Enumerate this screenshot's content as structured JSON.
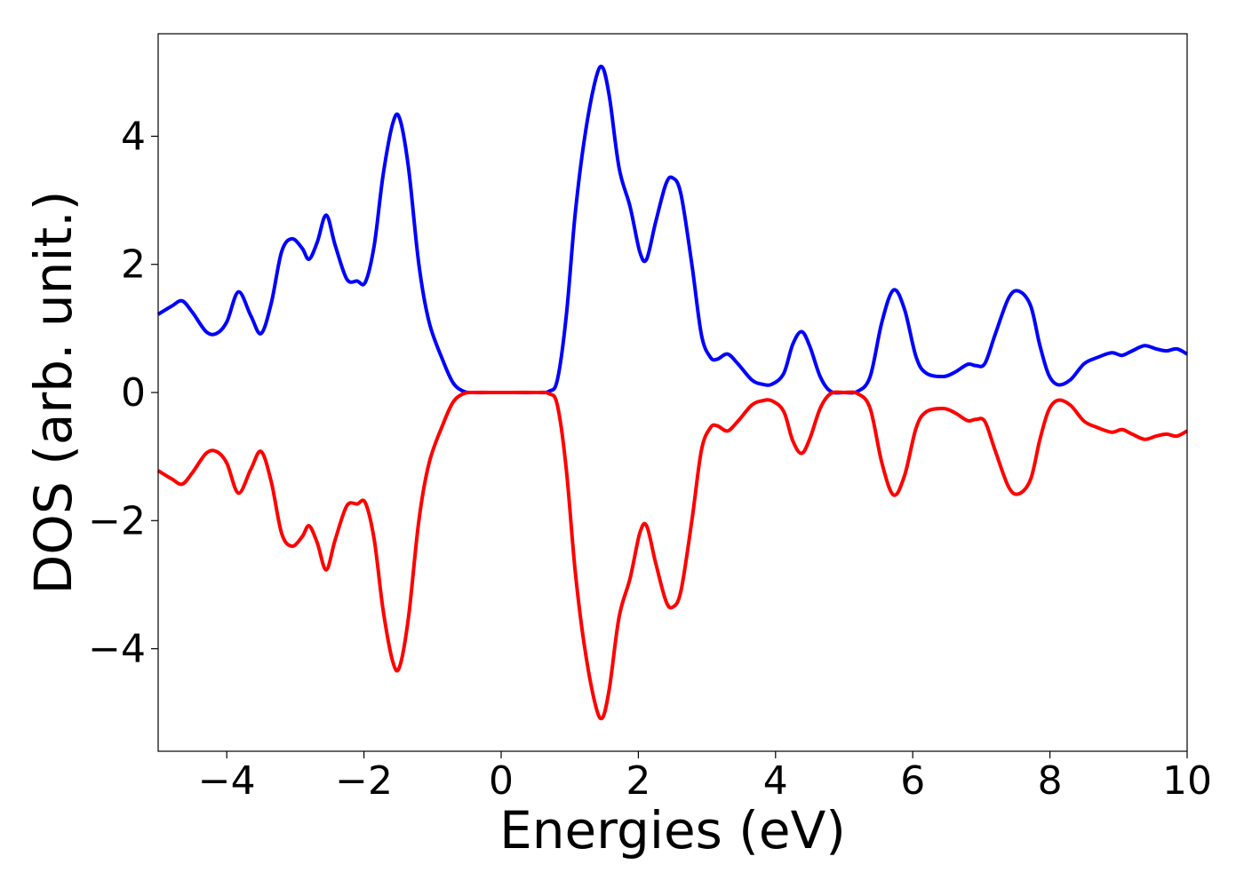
{
  "chart_data": {
    "type": "line",
    "title": "",
    "xlabel": "Energies (eV)",
    "ylabel": "DOS (arb. unit.)",
    "xlim": [
      -5,
      10
    ],
    "ylim": [
      -5.6,
      5.6
    ],
    "xticks": [
      -4,
      -2,
      0,
      2,
      4,
      6,
      8,
      10
    ],
    "xtick_labels": [
      "−4",
      "−2",
      "0",
      "2",
      "4",
      "6",
      "8",
      "10"
    ],
    "yticks": [
      4,
      2,
      0,
      -2,
      -4
    ],
    "ytick_labels": [
      "4",
      "2",
      "0",
      "−2",
      "−4"
    ],
    "grid": false,
    "legend": "none",
    "series": [
      {
        "color": "#0000ff",
        "points": [
          [
            -5.0,
            1.22
          ],
          [
            -4.8,
            1.35
          ],
          [
            -4.65,
            1.43
          ],
          [
            -4.5,
            1.25
          ],
          [
            -4.3,
            0.95
          ],
          [
            -4.15,
            0.92
          ],
          [
            -4.0,
            1.1
          ],
          [
            -3.83,
            1.57
          ],
          [
            -3.65,
            1.2
          ],
          [
            -3.5,
            0.92
          ],
          [
            -3.35,
            1.4
          ],
          [
            -3.2,
            2.2
          ],
          [
            -3.05,
            2.4
          ],
          [
            -2.9,
            2.25
          ],
          [
            -2.8,
            2.08
          ],
          [
            -2.68,
            2.35
          ],
          [
            -2.55,
            2.77
          ],
          [
            -2.42,
            2.3
          ],
          [
            -2.25,
            1.77
          ],
          [
            -2.1,
            1.74
          ],
          [
            -1.98,
            1.72
          ],
          [
            -1.85,
            2.3
          ],
          [
            -1.72,
            3.4
          ],
          [
            -1.58,
            4.2
          ],
          [
            -1.48,
            4.28
          ],
          [
            -1.35,
            3.5
          ],
          [
            -1.2,
            2.0
          ],
          [
            -1.05,
            1.1
          ],
          [
            -0.85,
            0.5
          ],
          [
            -0.7,
            0.15
          ],
          [
            -0.55,
            0.02
          ],
          [
            -0.4,
            0.0
          ],
          [
            0.0,
            0.0
          ],
          [
            0.5,
            0.0
          ],
          [
            0.7,
            0.02
          ],
          [
            0.82,
            0.2
          ],
          [
            0.95,
            1.2
          ],
          [
            1.08,
            2.8
          ],
          [
            1.22,
            4.0
          ],
          [
            1.38,
            4.9
          ],
          [
            1.48,
            5.07
          ],
          [
            1.58,
            4.6
          ],
          [
            1.72,
            3.5
          ],
          [
            1.88,
            2.9
          ],
          [
            2.02,
            2.2
          ],
          [
            2.12,
            2.08
          ],
          [
            2.25,
            2.65
          ],
          [
            2.4,
            3.25
          ],
          [
            2.5,
            3.35
          ],
          [
            2.62,
            3.1
          ],
          [
            2.78,
            2.0
          ],
          [
            2.92,
            0.9
          ],
          [
            3.05,
            0.55
          ],
          [
            3.15,
            0.52
          ],
          [
            3.3,
            0.6
          ],
          [
            3.45,
            0.45
          ],
          [
            3.65,
            0.2
          ],
          [
            3.8,
            0.13
          ],
          [
            3.95,
            0.13
          ],
          [
            4.12,
            0.3
          ],
          [
            4.25,
            0.75
          ],
          [
            4.38,
            0.95
          ],
          [
            4.5,
            0.72
          ],
          [
            4.65,
            0.25
          ],
          [
            4.8,
            0.02
          ],
          [
            5.0,
            0.0
          ],
          [
            5.2,
            0.02
          ],
          [
            5.38,
            0.25
          ],
          [
            5.55,
            1.1
          ],
          [
            5.72,
            1.6
          ],
          [
            5.88,
            1.3
          ],
          [
            6.05,
            0.55
          ],
          [
            6.2,
            0.3
          ],
          [
            6.45,
            0.25
          ],
          [
            6.62,
            0.32
          ],
          [
            6.8,
            0.44
          ],
          [
            6.92,
            0.42
          ],
          [
            7.05,
            0.45
          ],
          [
            7.2,
            0.9
          ],
          [
            7.4,
            1.48
          ],
          [
            7.55,
            1.58
          ],
          [
            7.72,
            1.35
          ],
          [
            7.85,
            0.75
          ],
          [
            7.98,
            0.28
          ],
          [
            8.12,
            0.12
          ],
          [
            8.3,
            0.2
          ],
          [
            8.5,
            0.45
          ],
          [
            8.7,
            0.55
          ],
          [
            8.9,
            0.62
          ],
          [
            9.05,
            0.58
          ],
          [
            9.2,
            0.65
          ],
          [
            9.38,
            0.73
          ],
          [
            9.55,
            0.68
          ],
          [
            9.7,
            0.65
          ],
          [
            9.85,
            0.68
          ],
          [
            10.0,
            0.6
          ]
        ]
      },
      {
        "color": "#ff0000",
        "points": [
          [
            -5.0,
            -1.22
          ],
          [
            -4.8,
            -1.35
          ],
          [
            -4.65,
            -1.43
          ],
          [
            -4.5,
            -1.25
          ],
          [
            -4.3,
            -0.95
          ],
          [
            -4.15,
            -0.92
          ],
          [
            -4.0,
            -1.1
          ],
          [
            -3.83,
            -1.57
          ],
          [
            -3.65,
            -1.2
          ],
          [
            -3.5,
            -0.92
          ],
          [
            -3.35,
            -1.4
          ],
          [
            -3.2,
            -2.2
          ],
          [
            -3.05,
            -2.4
          ],
          [
            -2.9,
            -2.25
          ],
          [
            -2.8,
            -2.08
          ],
          [
            -2.68,
            -2.35
          ],
          [
            -2.55,
            -2.77
          ],
          [
            -2.42,
            -2.3
          ],
          [
            -2.25,
            -1.77
          ],
          [
            -2.1,
            -1.74
          ],
          [
            -1.98,
            -1.72
          ],
          [
            -1.85,
            -2.3
          ],
          [
            -1.72,
            -3.4
          ],
          [
            -1.58,
            -4.2
          ],
          [
            -1.48,
            -4.28
          ],
          [
            -1.35,
            -3.5
          ],
          [
            -1.2,
            -2.0
          ],
          [
            -1.05,
            -1.1
          ],
          [
            -0.85,
            -0.5
          ],
          [
            -0.7,
            -0.15
          ],
          [
            -0.55,
            -0.02
          ],
          [
            -0.4,
            0.0
          ],
          [
            0.0,
            0.0
          ],
          [
            0.5,
            0.0
          ],
          [
            0.7,
            -0.02
          ],
          [
            0.82,
            -0.2
          ],
          [
            0.95,
            -1.2
          ],
          [
            1.08,
            -2.8
          ],
          [
            1.22,
            -4.0
          ],
          [
            1.38,
            -4.9
          ],
          [
            1.48,
            -5.07
          ],
          [
            1.58,
            -4.6
          ],
          [
            1.72,
            -3.5
          ],
          [
            1.88,
            -2.9
          ],
          [
            2.02,
            -2.2
          ],
          [
            2.12,
            -2.08
          ],
          [
            2.25,
            -2.65
          ],
          [
            2.4,
            -3.25
          ],
          [
            2.5,
            -3.35
          ],
          [
            2.62,
            -3.1
          ],
          [
            2.78,
            -2.0
          ],
          [
            2.92,
            -0.9
          ],
          [
            3.05,
            -0.55
          ],
          [
            3.15,
            -0.52
          ],
          [
            3.3,
            -0.6
          ],
          [
            3.45,
            -0.45
          ],
          [
            3.65,
            -0.2
          ],
          [
            3.8,
            -0.13
          ],
          [
            3.95,
            -0.13
          ],
          [
            4.12,
            -0.3
          ],
          [
            4.25,
            -0.75
          ],
          [
            4.38,
            -0.95
          ],
          [
            4.5,
            -0.72
          ],
          [
            4.65,
            -0.25
          ],
          [
            4.8,
            -0.02
          ],
          [
            5.0,
            0.0
          ],
          [
            5.2,
            -0.02
          ],
          [
            5.38,
            -0.25
          ],
          [
            5.55,
            -1.1
          ],
          [
            5.72,
            -1.6
          ],
          [
            5.88,
            -1.3
          ],
          [
            6.05,
            -0.55
          ],
          [
            6.2,
            -0.3
          ],
          [
            6.45,
            -0.25
          ],
          [
            6.62,
            -0.32
          ],
          [
            6.8,
            -0.44
          ],
          [
            6.92,
            -0.42
          ],
          [
            7.05,
            -0.45
          ],
          [
            7.2,
            -0.9
          ],
          [
            7.4,
            -1.48
          ],
          [
            7.55,
            -1.58
          ],
          [
            7.72,
            -1.35
          ],
          [
            7.85,
            -0.75
          ],
          [
            7.98,
            -0.28
          ],
          [
            8.12,
            -0.12
          ],
          [
            8.3,
            -0.2
          ],
          [
            8.5,
            -0.45
          ],
          [
            8.7,
            -0.55
          ],
          [
            8.9,
            -0.62
          ],
          [
            9.05,
            -0.58
          ],
          [
            9.2,
            -0.65
          ],
          [
            9.38,
            -0.73
          ],
          [
            9.55,
            -0.68
          ],
          [
            9.7,
            -0.65
          ],
          [
            9.85,
            -0.68
          ],
          [
            10.0,
            -0.6
          ]
        ]
      }
    ]
  }
}
